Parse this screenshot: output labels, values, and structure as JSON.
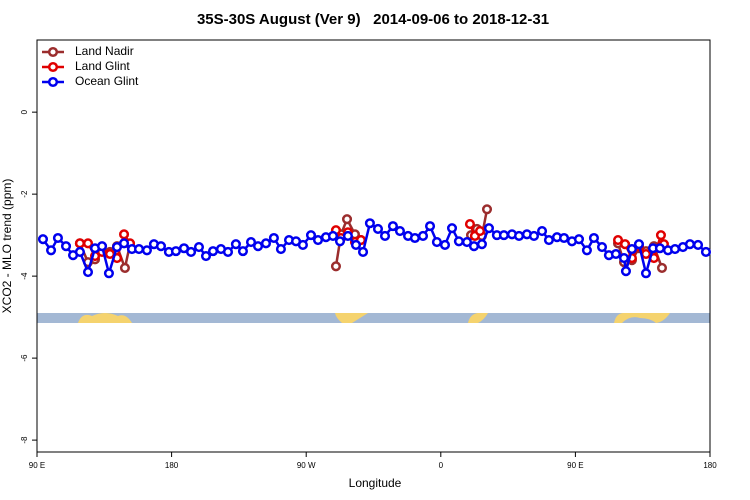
{
  "chart_data": {
    "type": "line",
    "title": "35S-30S August (Ver 9)   2014-09-06 to 2018-12-31",
    "xlabel": "Longitude",
    "ylabel": "XCO2 - MLO trend (ppm)",
    "xlim": [
      90,
      540
    ],
    "xticks": [
      {
        "value": 90,
        "label": "90 E"
      },
      {
        "value": 180,
        "label": "180"
      },
      {
        "value": 270,
        "label": "90 W"
      },
      {
        "value": 360,
        "label": "0"
      },
      {
        "value": 450,
        "label": "90 E"
      },
      {
        "value": 540,
        "label": "180"
      }
    ],
    "ylim": [
      -8.29,
      1.76
    ],
    "yticks": [
      0,
      -2,
      -4,
      -6,
      -8
    ],
    "legend": "top-left",
    "series": [
      {
        "name": "Land Nadir",
        "color": "#9b2d2d",
        "x": [
          118.7,
          124.1,
          128.8,
          133.5,
          138.8,
          143.5,
          148.8,
          152.2,
          null,
          289.9,
          293.3,
          297.3,
          302.6,
          306.6,
          null,
          380.2,
          384.2,
          387.5,
          390.9,
          null,
          478.5,
          482.5,
          487.8,
          492.5,
          497.2,
          502.5,
          507.9
        ],
        "values": [
          -3.2,
          -3.66,
          -3.59,
          -3.39,
          -3.41,
          -3.27,
          -3.8,
          -3.22,
          null,
          -3.76,
          -2.98,
          -2.61,
          -2.98,
          -3.12,
          null,
          -3.0,
          -2.85,
          -3.02,
          -2.37,
          null,
          -3.2,
          -3.66,
          -3.61,
          -3.32,
          -3.39,
          -3.27,
          -3.8
        ]
      },
      {
        "name": "Land Glint",
        "color": "#e00000",
        "x": [
          118.7,
          124.1,
          128.8,
          133.5,
          138.8,
          143.5,
          148.2,
          152.2,
          null,
          289.9,
          293.3,
          297.9,
          302.6,
          306.6,
          null,
          379.5,
          382.8,
          386.2,
          null,
          478.5,
          483.2,
          487.8,
          492.5,
          497.2,
          502.5,
          507.2,
          509.2
        ],
        "values": [
          -3.2,
          -3.2,
          -3.51,
          -3.41,
          -3.46,
          -3.56,
          -2.98,
          -3.2,
          null,
          -2.88,
          -3.07,
          -2.93,
          -3.17,
          -3.12,
          null,
          -2.73,
          -3.02,
          -2.9,
          null,
          -3.12,
          -3.22,
          -3.56,
          -3.27,
          -3.46,
          -3.56,
          -3.0,
          -3.22
        ]
      },
      {
        "name": "Ocean Glint",
        "color": "#0000ee",
        "x": [
          94.0,
          99.4,
          104.0,
          109.4,
          114.1,
          118.7,
          124.1,
          128.8,
          133.5,
          138.1,
          143.5,
          148.2,
          153.5,
          158.2,
          163.5,
          168.2,
          172.9,
          178.2,
          182.9,
          188.3,
          193.0,
          198.3,
          203.0,
          207.7,
          213.0,
          217.7,
          223.0,
          227.7,
          233.1,
          237.8,
          243.1,
          248.4,
          253.1,
          258.5,
          263.2,
          267.8,
          273.2,
          277.9,
          283.2,
          287.9,
          292.6,
          297.9,
          303.3,
          308.0,
          312.6,
          318.0,
          322.7,
          328.0,
          332.7,
          338.1,
          342.7,
          348.1,
          352.8,
          357.4,
          362.8,
          367.5,
          372.1,
          377.5,
          382.2,
          387.5,
          392.2,
          397.5,
          402.2,
          407.6,
          412.3,
          417.6,
          422.3,
          427.7,
          432.3,
          437.7,
          442.4,
          447.7,
          452.4,
          457.7,
          462.4,
          467.8,
          472.4,
          477.1,
          482.5,
          483.8,
          487.8,
          492.5,
          497.2,
          501.9,
          506.5,
          511.9,
          516.6,
          521.9,
          526.6,
          532.0,
          537.3
        ],
        "values": [
          -3.1,
          -3.37,
          -3.07,
          -3.27,
          -3.49,
          -3.41,
          -3.9,
          -3.32,
          -3.27,
          -3.93,
          -3.29,
          -3.2,
          -3.34,
          -3.34,
          -3.37,
          -3.22,
          -3.27,
          -3.41,
          -3.39,
          -3.32,
          -3.41,
          -3.29,
          -3.51,
          -3.39,
          -3.34,
          -3.41,
          -3.22,
          -3.39,
          -3.17,
          -3.27,
          -3.2,
          -3.07,
          -3.34,
          -3.12,
          -3.15,
          -3.24,
          -3.0,
          -3.12,
          -3.05,
          -3.02,
          -3.15,
          -3.02,
          -3.24,
          -3.41,
          -2.71,
          -2.85,
          -3.02,
          -2.78,
          -2.9,
          -3.02,
          -3.07,
          -3.02,
          -2.78,
          -3.17,
          -3.24,
          -2.83,
          -3.15,
          -3.17,
          -3.27,
          -3.22,
          -2.83,
          -3.0,
          -3.0,
          -2.98,
          -3.02,
          -2.98,
          -3.02,
          -2.9,
          -3.12,
          -3.05,
          -3.07,
          -3.15,
          -3.1,
          -3.37,
          -3.07,
          -3.29,
          -3.49,
          -3.46,
          -3.56,
          -3.88,
          -3.34,
          -3.22,
          -3.93,
          -3.32,
          -3.32,
          -3.37,
          -3.34,
          -3.29,
          -3.22,
          -3.24,
          -3.41
        ]
      }
    ]
  }
}
